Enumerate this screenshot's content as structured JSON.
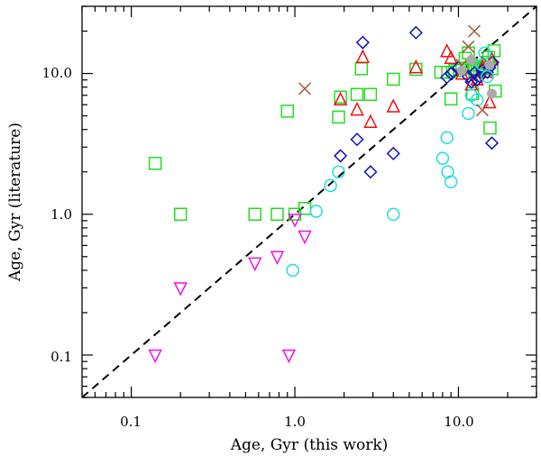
{
  "chart_data": {
    "type": "scatter",
    "title": "",
    "xlabel": "Age, Gyr (this work)",
    "ylabel": "Age, Gyr (literature)",
    "xscale": "log",
    "yscale": "log",
    "xlim": [
      0.05,
      30
    ],
    "ylim": [
      0.05,
      30
    ],
    "xticks": [
      {
        "value": 0.1,
        "label": "0.1"
      },
      {
        "value": 1,
        "label": "1.0"
      },
      {
        "value": 10,
        "label": "10.0"
      }
    ],
    "yticks": [
      {
        "value": 0.1,
        "label": "0.1"
      },
      {
        "value": 1,
        "label": "1.0"
      },
      {
        "value": 10,
        "label": "10.0"
      }
    ],
    "reference_line": {
      "name": "one-to-one",
      "style": "dashed",
      "color": "#000000",
      "from": [
        0.05,
        0.05
      ],
      "to": [
        30,
        30
      ]
    },
    "series": [
      {
        "name": "squares",
        "marker": "square",
        "color": "#22dd22",
        "points": [
          [
            0.14,
            2.3
          ],
          [
            0.2,
            1.0
          ],
          [
            0.57,
            1.0
          ],
          [
            0.78,
            1.0
          ],
          [
            1.0,
            1.0
          ],
          [
            1.15,
            1.1
          ],
          [
            0.9,
            5.4
          ],
          [
            1.85,
            4.9
          ],
          [
            1.9,
            6.8
          ],
          [
            2.4,
            7.1
          ],
          [
            2.55,
            10.8
          ],
          [
            2.9,
            7.1
          ],
          [
            4.0,
            9.1
          ],
          [
            5.5,
            10.7
          ],
          [
            7.8,
            10.2
          ],
          [
            8.6,
            10.2
          ],
          [
            9.0,
            6.6
          ],
          [
            9.5,
            10.5
          ],
          [
            10.5,
            10.9
          ],
          [
            11.0,
            12.8
          ],
          [
            11.5,
            14.0
          ],
          [
            12.0,
            11.5
          ],
          [
            12.2,
            7.2
          ],
          [
            12.6,
            10.3
          ],
          [
            13.0,
            10.8
          ],
          [
            13.5,
            10.6
          ],
          [
            14.0,
            11.1
          ],
          [
            14.5,
            10.9
          ],
          [
            15.0,
            12.0
          ],
          [
            15.3,
            13.0
          ],
          [
            15.6,
            4.1
          ],
          [
            16.0,
            10.8
          ],
          [
            16.5,
            14.5
          ],
          [
            16.8,
            7.5
          ]
        ]
      },
      {
        "name": "triangles up",
        "marker": "triangle-up",
        "color": "#ee1111",
        "points": [
          [
            1.9,
            6.5
          ],
          [
            2.4,
            5.5
          ],
          [
            2.6,
            13.0
          ],
          [
            2.9,
            4.5
          ],
          [
            4.0,
            5.8
          ],
          [
            5.5,
            11.0
          ],
          [
            8.5,
            14.3
          ],
          [
            9.0,
            12.8
          ],
          [
            10.5,
            9.9
          ],
          [
            12.0,
            8.3
          ],
          [
            13.0,
            9.0
          ],
          [
            14.0,
            11.0
          ],
          [
            15.0,
            10.2
          ],
          [
            15.5,
            6.2
          ],
          [
            16.0,
            12.5
          ]
        ]
      },
      {
        "name": "diamonds",
        "marker": "diamond",
        "color": "#1111bb",
        "points": [
          [
            1.9,
            2.6
          ],
          [
            2.4,
            3.4
          ],
          [
            2.6,
            16.6
          ],
          [
            2.9,
            2.0
          ],
          [
            4.0,
            2.7
          ],
          [
            5.5,
            19.5
          ],
          [
            8.5,
            9.4
          ],
          [
            9.0,
            10.0
          ],
          [
            10.0,
            11.0
          ],
          [
            11.5,
            9.5
          ],
          [
            12.0,
            8.7
          ],
          [
            12.5,
            10.1
          ],
          [
            13.0,
            9.0
          ],
          [
            13.5,
            9.5
          ],
          [
            14.0,
            10.5
          ],
          [
            15.0,
            10.2
          ],
          [
            15.5,
            11.0
          ],
          [
            16.0,
            3.2
          ],
          [
            16.2,
            12.0
          ]
        ]
      },
      {
        "name": "circles",
        "marker": "circle",
        "color": "#22dddd",
        "points": [
          [
            0.97,
            0.4
          ],
          [
            1.35,
            1.05
          ],
          [
            1.65,
            1.6
          ],
          [
            1.85,
            2.0
          ],
          [
            4.0,
            1.0
          ],
          [
            8.0,
            2.5
          ],
          [
            8.5,
            3.5
          ],
          [
            8.6,
            2.0
          ],
          [
            9.0,
            1.7
          ],
          [
            11.5,
            5.2
          ],
          [
            12.0,
            7.0
          ],
          [
            13.0,
            6.5
          ],
          [
            14.0,
            11.5
          ],
          [
            14.5,
            14.0
          ],
          [
            15.0,
            9.5
          ]
        ]
      },
      {
        "name": "triangles down",
        "marker": "triangle-down",
        "color": "#ee11ee",
        "points": [
          [
            0.14,
            0.1
          ],
          [
            0.2,
            0.3
          ],
          [
            0.57,
            0.45
          ],
          [
            0.78,
            0.5
          ],
          [
            0.92,
            0.1
          ],
          [
            1.0,
            0.92
          ],
          [
            1.15,
            0.7
          ]
        ]
      },
      {
        "name": "crosses",
        "marker": "x",
        "color": "#aa5533",
        "points": [
          [
            1.15,
            7.8
          ],
          [
            10.5,
            11.5
          ],
          [
            11.5,
            15.5
          ],
          [
            12.5,
            20.0
          ],
          [
            14.0,
            5.5
          ],
          [
            15.0,
            12.0
          ]
        ]
      },
      {
        "name": "filled circles",
        "marker": "filled-circle",
        "color": "#aaaaaa",
        "points": [
          [
            10.5,
            10.5
          ],
          [
            12.0,
            12.5
          ],
          [
            15.5,
            11.5
          ],
          [
            16.0,
            7.2
          ]
        ]
      }
    ]
  }
}
